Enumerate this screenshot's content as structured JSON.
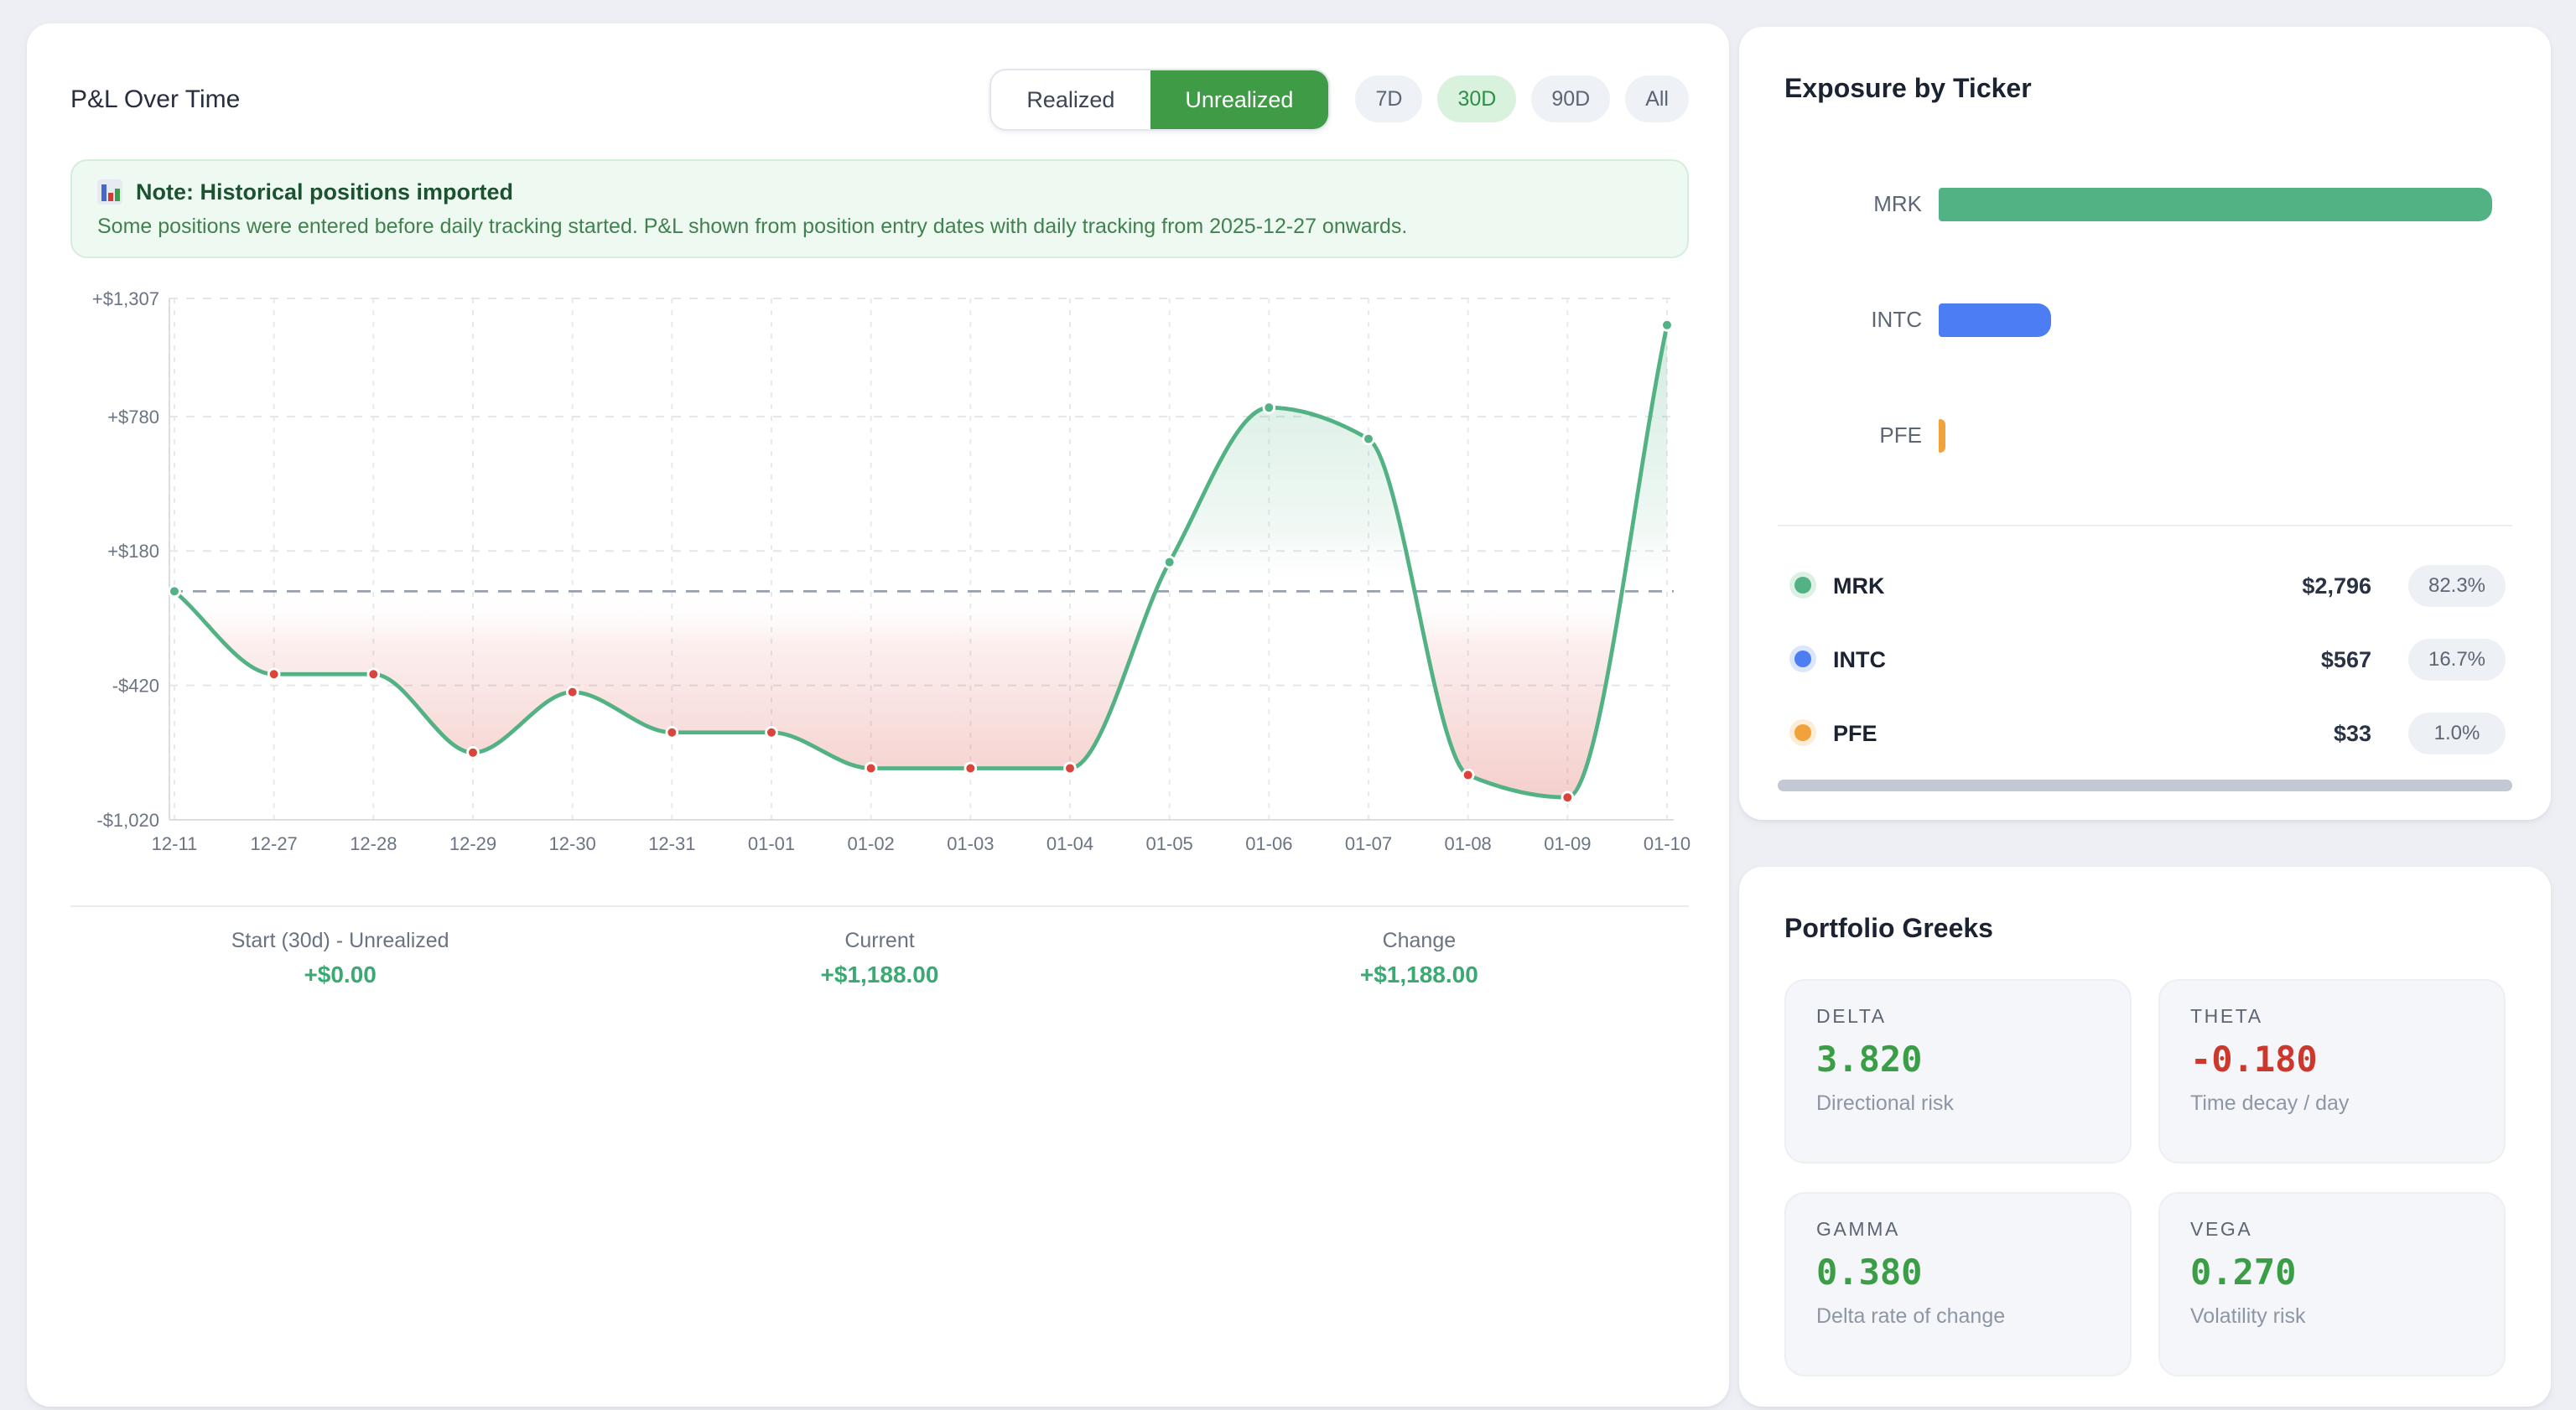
{
  "pnl_card": {
    "title": "P&L Over Time",
    "toggle": {
      "realized": "Realized",
      "unrealized": "Unrealized",
      "active": "Unrealized"
    },
    "ranges": [
      "7D",
      "30D",
      "90D",
      "All"
    ],
    "active_range": "30D",
    "note": {
      "title": "Note: Historical positions imported",
      "body": "Some positions were entered before daily tracking started. P&L shown from position entry dates with daily tracking from 2025-12-27 onwards."
    },
    "stats": [
      {
        "label": "Start (30d) - Unrealized",
        "value": "+$0.00"
      },
      {
        "label": "Current",
        "value": "+$1,188.00"
      },
      {
        "label": "Change",
        "value": "+$1,188.00"
      }
    ],
    "value_color": "#3aa972"
  },
  "chart_data": {
    "type": "line",
    "title": "P&L Over Time (Unrealized, 30D)",
    "x": [
      "12-11",
      "12-27",
      "12-28",
      "12-29",
      "12-30",
      "12-31",
      "01-01",
      "01-02",
      "01-03",
      "01-04",
      "01-05",
      "01-06",
      "01-07",
      "01-08",
      "01-09",
      "01-10"
    ],
    "series": [
      {
        "name": "Unrealized P&L ($)",
        "values": [
          0,
          -370,
          -370,
          -720,
          -450,
          -630,
          -630,
          -790,
          -790,
          -790,
          130,
          820,
          680,
          -820,
          -920,
          1188
        ]
      }
    ],
    "y_ticks": [
      1307,
      780,
      180,
      -420,
      -1020
    ],
    "y_tick_labels": [
      "+$1,307",
      "+$780",
      "+$180",
      "-$420",
      "-$1,020"
    ],
    "ylim": [
      -1020,
      1307
    ],
    "grid": true,
    "zero_line": true,
    "line_color": "#53b284",
    "positive_point_color": "#53b284",
    "negative_point_color": "#d9453b",
    "fill_above_color": "#53b284",
    "fill_below_color": "#d95046"
  },
  "exposure_card": {
    "title": "Exposure by Ticker",
    "tickers": [
      {
        "symbol": "MRK",
        "amount": "$2,796",
        "value": 2796,
        "percent": "82.3%",
        "color": "#53b284"
      },
      {
        "symbol": "INTC",
        "amount": "$567",
        "value": 567,
        "percent": "16.7%",
        "color": "#4d7df2"
      },
      {
        "symbol": "PFE",
        "amount": "$33",
        "value": 33,
        "percent": "1.0%",
        "color": "#f2a23a"
      }
    ]
  },
  "greeks_card": {
    "title": "Portfolio Greeks",
    "positive_color": "#3a9e47",
    "negative_color": "#ce382c",
    "greeks": [
      {
        "label": "DELTA",
        "value": "3.820",
        "tone": "positive",
        "desc": "Directional risk"
      },
      {
        "label": "THETA",
        "value": "-0.180",
        "tone": "negative",
        "desc": "Time decay / day"
      },
      {
        "label": "GAMMA",
        "value": "0.380",
        "tone": "positive",
        "desc": "Delta rate of change"
      },
      {
        "label": "VEGA",
        "value": "0.270",
        "tone": "positive",
        "desc": "Volatility risk"
      }
    ]
  }
}
